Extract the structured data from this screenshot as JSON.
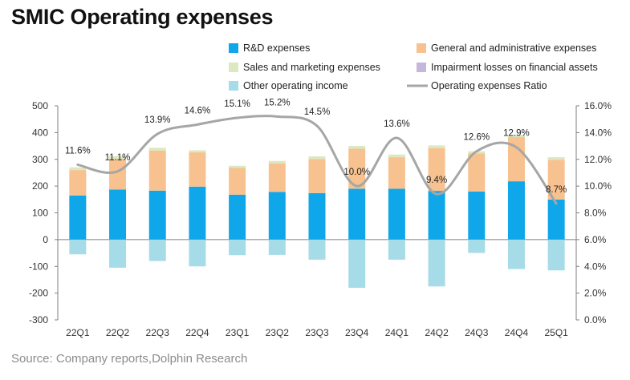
{
  "title": "SMIC Operating expenses",
  "source": "Source: Company reports,Dolphin Research",
  "colors": {
    "rd": "#0fa7ea",
    "ga": "#f7c28f",
    "sm": "#dbe8c2",
    "impair": "#c5b7dc",
    "other": "#a6dbe8",
    "ratio": "#a6a6a6"
  },
  "chart_data": {
    "type": "bar",
    "stacked": true,
    "categories": [
      "22Q1",
      "22Q2",
      "22Q3",
      "22Q4",
      "23Q1",
      "23Q2",
      "23Q3",
      "23Q4",
      "24Q1",
      "24Q2",
      "24Q3",
      "24Q4",
      "25Q1"
    ],
    "series": [
      {
        "name": "R&D expenses",
        "key": "rd",
        "values": [
          165,
          187,
          183,
          198,
          168,
          178,
          174,
          190,
          190,
          182,
          180,
          218,
          150
        ]
      },
      {
        "name": "General and administrative expenses",
        "key": "ga",
        "values": [
          95,
          115,
          150,
          128,
          100,
          107,
          127,
          150,
          118,
          160,
          142,
          165,
          148
        ]
      },
      {
        "name": "Sales and marketing expenses",
        "key": "sm",
        "values": [
          10,
          10,
          10,
          8,
          8,
          9,
          10,
          10,
          10,
          10,
          8,
          8,
          10
        ]
      },
      {
        "name": "Impairment losses on financial assets",
        "key": "impair",
        "values": [
          0,
          0,
          0,
          0,
          0,
          0,
          0,
          0,
          0,
          0,
          0,
          0,
          0
        ]
      },
      {
        "name": "Other operating income",
        "key": "other",
        "values": [
          -55,
          -105,
          -80,
          -100,
          -58,
          -57,
          -75,
          -180,
          -75,
          -175,
          -50,
          -110,
          -115
        ]
      }
    ],
    "ratio_series": {
      "name": "Operating expenses Ratio",
      "values": [
        11.6,
        11.1,
        13.9,
        14.6,
        15.1,
        15.2,
        14.5,
        10.0,
        13.6,
        9.4,
        12.6,
        12.9,
        8.7
      ],
      "labels": [
        "11.6%",
        "11.1%",
        "13.9%",
        "14.6%",
        "15.1%",
        "15.2%",
        "14.5%",
        "10.0%",
        "13.6%",
        "9.4%",
        "12.6%",
        "12.9%",
        "8.7%"
      ]
    },
    "y_left": {
      "min": -300,
      "max": 500,
      "step": 100,
      "ticks": [
        "500",
        "400",
        "300",
        "200",
        "100",
        "0",
        "-100",
        "-200",
        "-300"
      ]
    },
    "y_right": {
      "min": 0,
      "max": 16,
      "step": 2,
      "ticks": [
        "16.0%",
        "14.0%",
        "12.0%",
        "10.0%",
        "8.0%",
        "6.0%",
        "4.0%",
        "2.0%",
        "0.0%"
      ]
    },
    "grid": false,
    "legend_position": "top-right"
  }
}
